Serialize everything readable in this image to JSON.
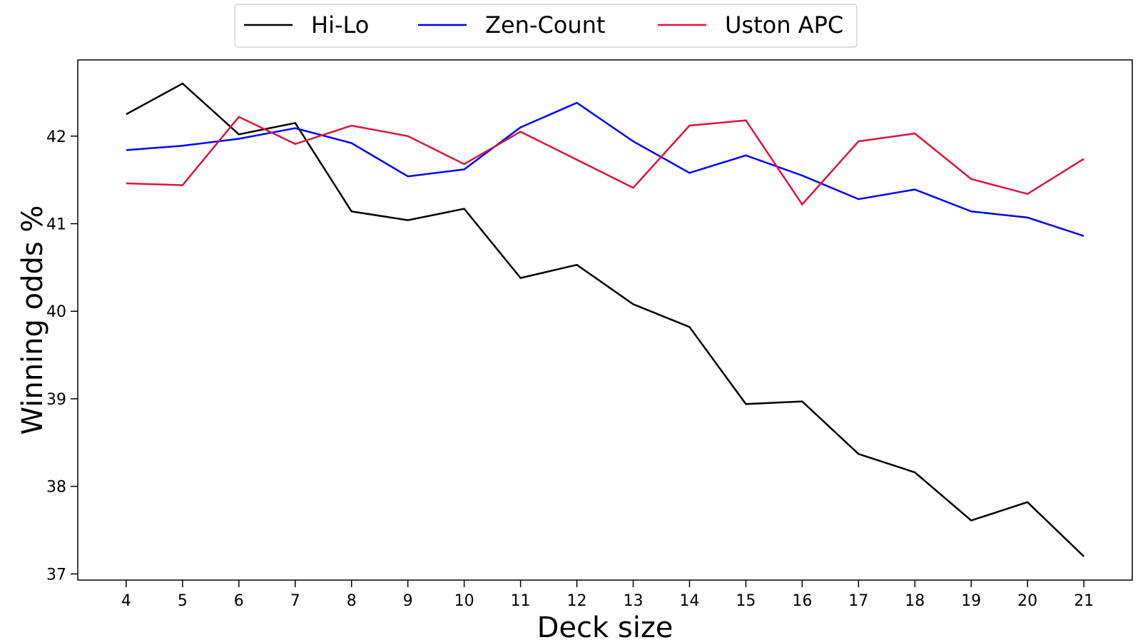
{
  "chart_data": {
    "type": "line",
    "title": "",
    "xlabel": "Deck size",
    "ylabel": "Winning odds %",
    "x": [
      4,
      5,
      6,
      7,
      8,
      9,
      10,
      11,
      12,
      13,
      14,
      15,
      16,
      17,
      18,
      19,
      20,
      21
    ],
    "xticks": [
      "4",
      "5",
      "6",
      "7",
      "8",
      "9",
      "10",
      "11",
      "12",
      "13",
      "14",
      "15",
      "16",
      "17",
      "18",
      "19",
      "20",
      "21"
    ],
    "ylim": [
      36.93,
      42.87
    ],
    "yticks": [
      37,
      38,
      39,
      40,
      41,
      42
    ],
    "grid": false,
    "legend_position": "top-center",
    "series": [
      {
        "name": "Hi-Lo",
        "color": "#000000",
        "values": [
          42.25,
          42.6,
          42.02,
          42.15,
          41.14,
          41.04,
          41.17,
          40.38,
          40.53,
          40.08,
          39.82,
          38.94,
          38.97,
          38.37,
          38.16,
          37.61,
          37.82,
          37.2
        ]
      },
      {
        "name": "Zen-Count",
        "color": "#0000ff",
        "values": [
          41.84,
          41.89,
          41.97,
          42.09,
          41.92,
          41.54,
          41.62,
          42.1,
          42.38,
          41.94,
          41.58,
          41.78,
          41.55,
          41.28,
          41.39,
          41.14,
          41.07,
          40.86
        ]
      },
      {
        "name": "Uston APC",
        "color": "#dc143c",
        "values": [
          41.46,
          41.44,
          42.22,
          41.91,
          42.12,
          42.0,
          41.68,
          42.05,
          41.73,
          41.41,
          42.12,
          42.18,
          41.22,
          41.94,
          42.03,
          41.51,
          41.34,
          41.74
        ]
      }
    ]
  }
}
